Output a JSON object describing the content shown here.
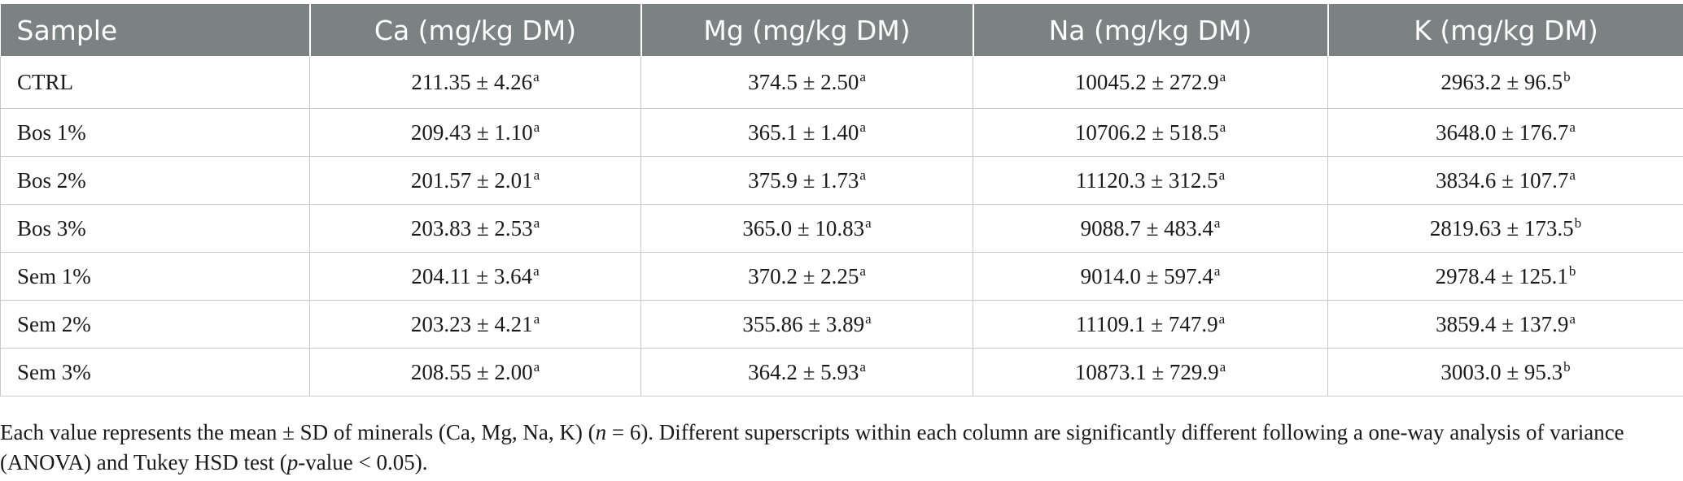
{
  "table": {
    "headers": [
      "Sample",
      "Ca (mg/kg DM)",
      "Mg (mg/kg DM)",
      "Na (mg/kg DM)",
      "K (mg/kg DM)"
    ],
    "rows": [
      {
        "sample": "CTRL",
        "cells": [
          [
            "211.35 ± 4.26",
            "a"
          ],
          [
            "374.5 ± 2.50",
            "a"
          ],
          [
            "10045.2 ± 272.9",
            "a"
          ],
          [
            "2963.2 ± 96.5",
            "b"
          ]
        ]
      },
      {
        "sample": "Bos 1%",
        "cells": [
          [
            "209.43 ± 1.10",
            "a"
          ],
          [
            "365.1 ± 1.40",
            "a"
          ],
          [
            "10706.2 ± 518.5",
            "a"
          ],
          [
            "3648.0 ± 176.7",
            "a"
          ]
        ]
      },
      {
        "sample": "Bos 2%",
        "cells": [
          [
            "201.57 ± 2.01",
            "a"
          ],
          [
            "375.9 ± 1.73",
            "a"
          ],
          [
            "11120.3 ± 312.5",
            "a"
          ],
          [
            "3834.6 ± 107.7",
            "a"
          ]
        ]
      },
      {
        "sample": "Bos 3%",
        "cells": [
          [
            "203.83 ± 2.53",
            "a"
          ],
          [
            "365.0 ± 10.83",
            "a"
          ],
          [
            "9088.7 ± 483.4",
            "a"
          ],
          [
            "2819.63 ± 173.5",
            "b"
          ]
        ]
      },
      {
        "sample": "Sem 1%",
        "cells": [
          [
            "204.11 ± 3.64",
            "a"
          ],
          [
            "370.2 ± 2.25",
            "a"
          ],
          [
            "9014.0 ± 597.4",
            "a"
          ],
          [
            "2978.4 ± 125.1",
            "b"
          ]
        ]
      },
      {
        "sample": "Sem 2%",
        "cells": [
          [
            "203.23 ± 4.21",
            "a"
          ],
          [
            "355.86 ± 3.89",
            "a"
          ],
          [
            "11109.1 ± 747.9",
            "a"
          ],
          [
            "3859.4 ± 137.9",
            "a"
          ]
        ]
      },
      {
        "sample": "Sem 3%",
        "cells": [
          [
            "208.55 ± 2.00",
            "a"
          ],
          [
            "364.2 ± 5.93",
            "a"
          ],
          [
            "10873.1 ± 729.9",
            "a"
          ],
          [
            "3003.0 ± 95.3",
            "b"
          ]
        ]
      }
    ]
  },
  "footnote": {
    "part1": "Each value represents the mean ± SD of minerals (Ca, Mg, Na, K) (",
    "n_var": "n",
    "part2": " = 6). Different superscripts within each column are significantly different following a one-way analysis of variance (ANOVA) and Tukey HSD test (",
    "p_var": "p",
    "part3": "-value < 0.05)."
  }
}
